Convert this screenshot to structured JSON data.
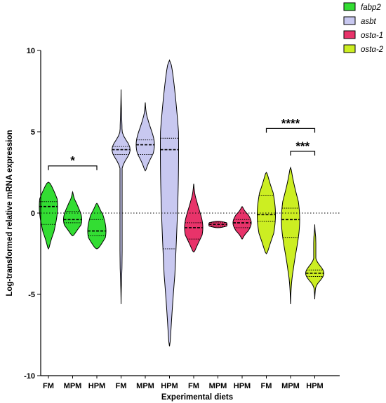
{
  "chart_data": {
    "type": "violin",
    "title": "",
    "xlabel": "Experimental diets",
    "ylabel": "Log-transformed relative mRNA expression",
    "ylim": [
      -10,
      10
    ],
    "yticks": [
      -10,
      -5,
      0,
      5,
      10
    ],
    "reference_line_y": 0,
    "legend_position": "top-right",
    "series": [
      {
        "name": "fabp2",
        "color": "#33dd33",
        "groups": [
          {
            "label": "FM",
            "median": 0.4,
            "q1": -0.7,
            "q3": 0.7,
            "min": -2.2,
            "max": 1.9
          },
          {
            "label": "MPM",
            "median": -0.4,
            "q1": -0.6,
            "q3": 0.1,
            "min": -1.4,
            "max": 1.3
          },
          {
            "label": "HPM",
            "median": -1.1,
            "q1": -1.4,
            "q3": -0.4,
            "min": -2.2,
            "max": 0.6
          }
        ]
      },
      {
        "name": "asbt",
        "color": "#c8c8f0",
        "groups": [
          {
            "label": "FM",
            "median": 3.9,
            "q1": 3.6,
            "q3": 4.1,
            "min": -5.6,
            "max": 7.6
          },
          {
            "label": "MPM",
            "median": 4.2,
            "q1": 3.6,
            "q3": 4.5,
            "min": 2.6,
            "max": 6.8
          },
          {
            "label": "HPM",
            "median": 3.9,
            "q1": -2.2,
            "q3": 4.6,
            "min": -8.2,
            "max": 9.4
          }
        ]
      },
      {
        "name": "ostα-1",
        "color": "#e8336a",
        "groups": [
          {
            "label": "FM",
            "median": -0.9,
            "q1": -1.6,
            "q3": -0.6,
            "min": -2.4,
            "max": 1.8
          },
          {
            "label": "MPM",
            "median": -0.7,
            "q1": -0.8,
            "q3": -0.6,
            "min": -0.9,
            "max": -0.5
          },
          {
            "label": "HPM",
            "median": -0.6,
            "q1": -0.9,
            "q3": -0.4,
            "min": -1.6,
            "max": 0.4
          }
        ]
      },
      {
        "name": "ostα-2",
        "color": "#ccee22",
        "groups": [
          {
            "label": "FM",
            "median": -0.1,
            "q1": -0.5,
            "q3": 1.1,
            "min": -2.5,
            "max": 2.5
          },
          {
            "label": "MPM",
            "median": -0.4,
            "q1": -1.5,
            "q3": 0.3,
            "min": -5.6,
            "max": 2.8
          },
          {
            "label": "HPM",
            "median": -3.7,
            "q1": -3.9,
            "q3": -3.5,
            "min": -5.3,
            "max": -0.7
          }
        ]
      }
    ],
    "significance": [
      {
        "series": "fabp2",
        "from": "FM",
        "to": "HPM",
        "y": 2.9,
        "label": "*"
      },
      {
        "series": "ostα-2",
        "from": "FM",
        "to": "HPM",
        "y": 5.2,
        "label": "****"
      },
      {
        "series": "ostα-2",
        "from": "MPM",
        "to": "HPM",
        "y": 3.8,
        "label": "***"
      }
    ]
  }
}
